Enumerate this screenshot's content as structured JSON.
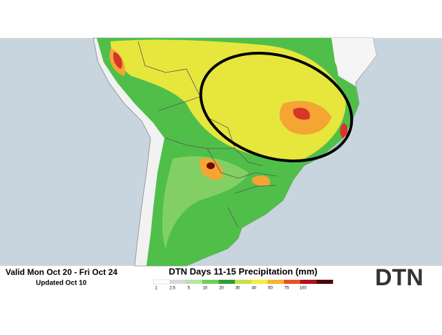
{
  "header": {
    "valid": "Valid Mon Oct 20 - Fri Oct 24",
    "updated": "Updated Oct 10"
  },
  "legend": {
    "title": "DTN Days 11-15 Precipitation (mm)",
    "ticks": [
      1,
      2.5,
      5,
      10,
      20,
      30,
      40,
      50,
      75,
      100
    ],
    "colors": [
      "#ffffff",
      "#d9d9d9",
      "#b5e6a6",
      "#6fcf5a",
      "#2f9e3a",
      "#c8e04a",
      "#f2ee3c",
      "#f5b431",
      "#e8502a",
      "#b3121b",
      "#4a0a0a"
    ]
  },
  "logo": "DTN"
}
